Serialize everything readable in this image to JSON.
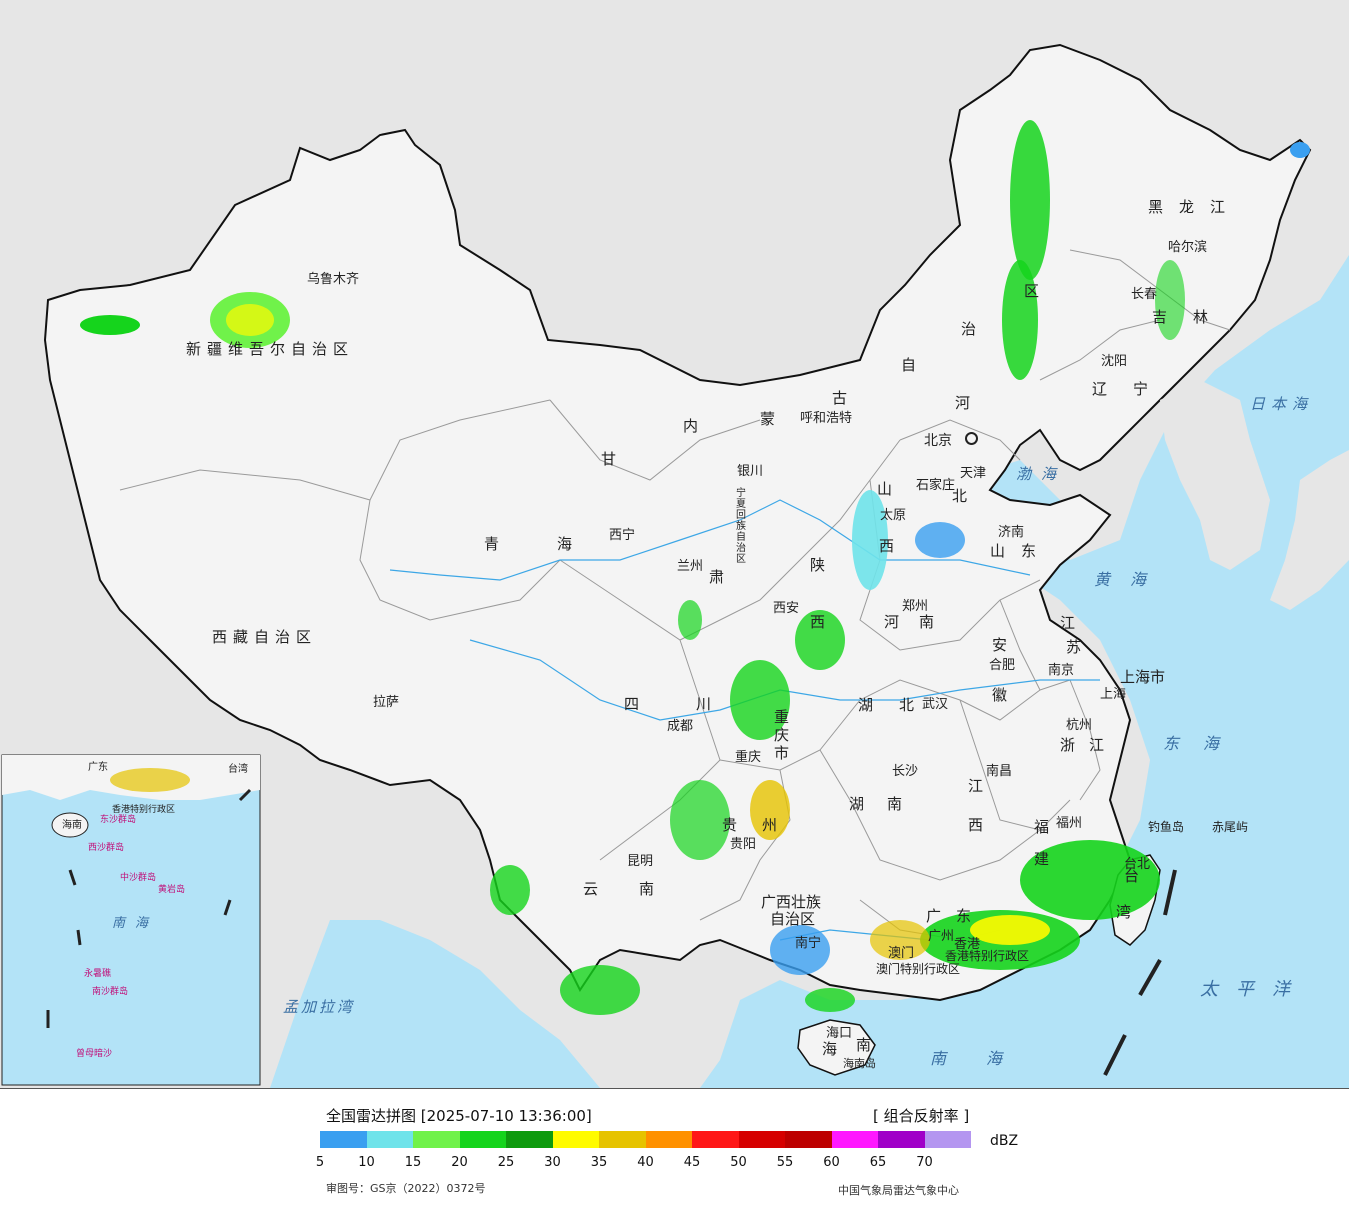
{
  "map": {
    "colors": {
      "ocean": "#b3e3f7",
      "land_outside": "#e6e6e6",
      "china_land": "#f4f4f4",
      "border": "#111111",
      "province_border": "#999999",
      "river": "#3da7e6",
      "map_frame": "#555555"
    },
    "provinces": {
      "xinjiang": "新疆维吾尔自治区",
      "xizang": "西藏自治区",
      "qinghai_a": "青",
      "qinghai_b": "海",
      "gansu_a": "甘",
      "gansu_b": "肃",
      "neimenggu_1": "内",
      "neimenggu_2": "蒙",
      "neimenggu_3": "古",
      "neimenggu_4": "自",
      "neimenggu_5": "治",
      "neimenggu_6": "区",
      "heilongjiang": "黑龙江",
      "jilin": "吉林",
      "liaoning": "辽宁",
      "hebei_a": "河",
      "hebei_b": "北",
      "shanxi_a": "山",
      "shanxi_b": "西",
      "shandong": "山东",
      "henan": "河南",
      "shaanxi_a": "陕",
      "shaanxi_b": "西",
      "ningxia": "宁夏回族自治区",
      "sichuan_a": "四",
      "sichuan_b": "川",
      "chongqing": "重庆市",
      "hubei": "湖北",
      "hunan_a": "湖",
      "hunan_b": "南",
      "jiangxi_a": "江",
      "jiangxi_b": "西",
      "anhui_a": "安",
      "anhui_b": "徽",
      "jiangsu_a": "江",
      "jiangsu_b": "苏",
      "zhejiang": "浙江",
      "fujian_a": "福",
      "fujian_b": "建",
      "guizhou_a": "贵",
      "guizhou_b": "州",
      "yunnan_a": "云",
      "yunnan_b": "南",
      "guangxi_a": "广西壮族",
      "guangxi_b": "自治区",
      "guangdong_a": "广",
      "guangdong_b": "东",
      "hainan_a": "海",
      "hainan_b": "南",
      "taiwan_a": "台",
      "taiwan_b": "湾",
      "shanghai": "上海市",
      "beijing": "北京",
      "tianjin": "天津",
      "hk": "香港特别行政区",
      "macau": "澳门特别行政区"
    },
    "cities": {
      "urumqi": "乌鲁木齐",
      "lhasa": "拉萨",
      "xining": "西宁",
      "lanzhou": "兰州",
      "yinchuan": "银川",
      "hohhot": "呼和浩特",
      "beijing": "北京",
      "tianjin": "天津",
      "shijiazhuang": "石家庄",
      "taiyuan": "太原",
      "jinan": "济南",
      "zhengzhou": "郑州",
      "xian": "西安",
      "harbin": "哈尔滨",
      "changchun": "长春",
      "shenyang": "沈阳",
      "chengdu": "成都",
      "chongqing": "重庆",
      "wuhan": "武汉",
      "hefei": "合肥",
      "nanjing": "南京",
      "shanghai": "上海",
      "hangzhou": "杭州",
      "nanchang": "南昌",
      "changsha": "长沙",
      "fuzhou": "福州",
      "guiyang": "贵阳",
      "kunming": "昆明",
      "nanning": "南宁",
      "guangzhou": "广州",
      "hongkong": "香港",
      "macau": "澳门",
      "haikou": "海口",
      "taipei": "台北",
      "diaoyu": "钓鱼岛",
      "chiwei": "赤尾屿",
      "hainan_island": "海南岛"
    },
    "seas": {
      "bohai": "渤海",
      "yellow": "黄海",
      "east": "东海",
      "south": "南海",
      "pacific": "太平洋",
      "japan": "日本海",
      "bengal": "孟加拉湾"
    },
    "inset": {
      "south_sea": "南海",
      "dongsha": "东沙群岛",
      "xisha": "西沙群岛",
      "zhongsha": "中沙群岛",
      "huangyan": "黄岩岛",
      "nansha": "南沙群岛",
      "yongshu": "永暑礁",
      "zengmu": "曾母暗沙",
      "hainan": "海南",
      "guangdong": "广东",
      "taiwan": "台湾",
      "hk": "香港特别行政区"
    }
  },
  "legend": {
    "title": "全国雷达拼图 [2025-07-10 13:36:00]",
    "product": "[ 组合反射率 ]",
    "unit": "dBZ",
    "colors": [
      "#3a9ff0",
      "#6fe3ea",
      "#70f24a",
      "#15d41c",
      "#0e9a0e",
      "#fffb00",
      "#e6c300",
      "#ff9100",
      "#ff1717",
      "#d60000",
      "#bd0000",
      "#ff17ff",
      "#a000c8",
      "#b496f0"
    ],
    "ticks": [
      "5",
      "10",
      "15",
      "20",
      "25",
      "30",
      "35",
      "40",
      "45",
      "50",
      "55",
      "60",
      "65",
      "70"
    ],
    "approval": "审图号：GS京（2022）0372号",
    "source": "中国气象局雷达气象中心"
  }
}
